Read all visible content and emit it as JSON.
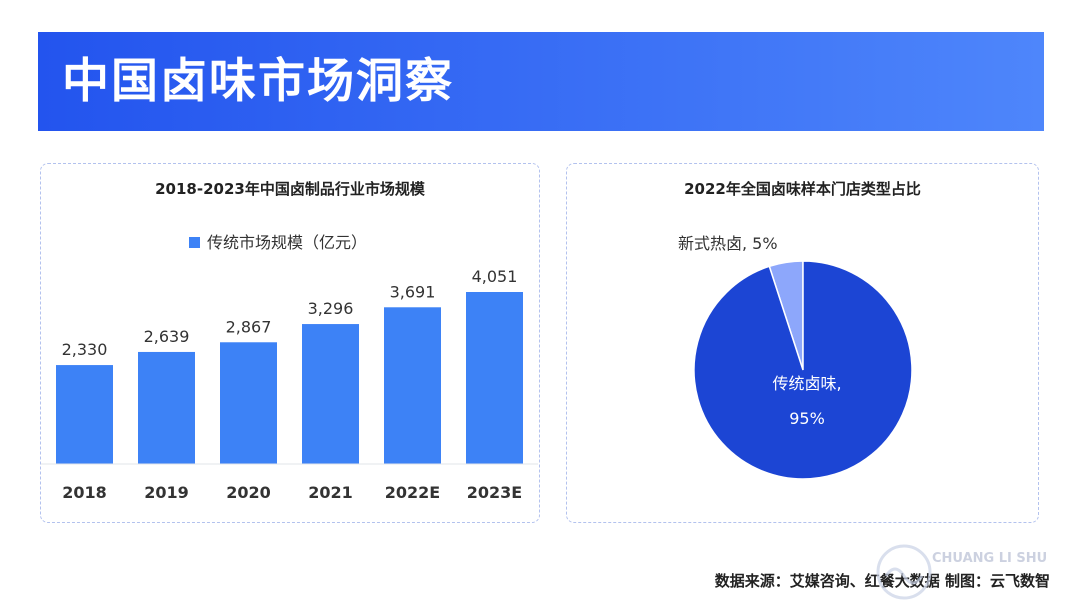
{
  "banner": {
    "title": "中国卤味市场洞察"
  },
  "charts": [
    {
      "title": "2018-2023年中国卤制品行业市场规模",
      "type": "bar",
      "legend_label": "传统市场规模（亿元）",
      "legend_position": "top-center",
      "categories": [
        "2018",
        "2019",
        "2020",
        "2021",
        "2022E",
        "2023E"
      ],
      "values": [
        2330,
        2639,
        2867,
        3296,
        3691,
        4051
      ],
      "value_labels": [
        "2,330",
        "2,639",
        "2,867",
        "3,296",
        "3,691",
        "4,051"
      ],
      "bar_color": "#3d82f6",
      "grid": false
    },
    {
      "title": "2022年全国卤味样本门店类型占比",
      "type": "pie",
      "slices": [
        {
          "label": "传统卤味,",
          "value_text": "95%",
          "value": 95,
          "color": "#1c45d4"
        },
        {
          "label": "新式热卤, 5%",
          "value_text": "",
          "value": 5,
          "color": "#8da7fb"
        }
      ]
    }
  ],
  "chart_data": [
    {
      "type": "bar",
      "title": "2018-2023年中国卤制品行业市场规模",
      "categories": [
        "2018",
        "2019",
        "2020",
        "2021",
        "2022E",
        "2023E"
      ],
      "series": [
        {
          "name": "传统市场规模（亿元）",
          "values": [
            2330,
            2639,
            2867,
            3296,
            3691,
            4051
          ]
        }
      ],
      "legend": "top-center",
      "grid": false,
      "ylim": [
        0,
        4051
      ]
    },
    {
      "type": "pie",
      "title": "2022年全国卤味样本门店类型占比",
      "categories": [
        "传统卤味",
        "新式热卤"
      ],
      "values": [
        95,
        5
      ]
    }
  ],
  "footer": {
    "source": "数据来源：艾媒咨询、红餐大数据 制图：云飞数智"
  },
  "watermark": {
    "text": "CHUANG LI SHU"
  }
}
